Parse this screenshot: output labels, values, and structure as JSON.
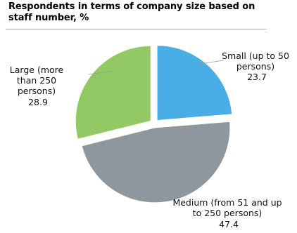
{
  "chart_data": {
    "type": "pie",
    "title_lines": [
      "Respondents in terms of company size based on",
      "staff number, %"
    ],
    "slices": [
      {
        "label_lines": [
          "Small (up to 50",
          "persons)"
        ],
        "value": 23.7,
        "value_text": "23.7",
        "color": "#4aaee6"
      },
      {
        "label_lines": [
          "Medium (from 51 and up",
          "to 250 persons)"
        ],
        "value": 47.4,
        "value_text": "47.4",
        "color": "#8e979d"
      },
      {
        "label_lines": [
          "Large (more",
          "than 250",
          "persons)"
        ],
        "value": 28.9,
        "value_text": "28.9",
        "color": "#92c964"
      }
    ]
  }
}
